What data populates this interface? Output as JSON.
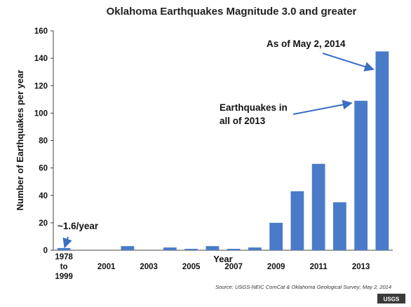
{
  "chart_data": {
    "type": "bar",
    "title": "Oklahoma Earthquakes Magnitude 3.0 and greater",
    "xlabel": "Year",
    "ylabel": "Number of Earthquakes per year",
    "ylim": [
      0,
      160
    ],
    "yticks": [
      "0",
      "20",
      "40",
      "60",
      "80",
      "100",
      "120",
      "140",
      "160"
    ],
    "categories": [
      "1978 to 1999",
      "2000",
      "2001",
      "2002",
      "2003",
      "2004",
      "2005",
      "2006",
      "2007",
      "2008",
      "2009",
      "2010",
      "2011",
      "2012",
      "2013",
      "2014"
    ],
    "values": [
      1.6,
      0,
      0,
      3,
      0,
      2,
      1,
      3,
      1,
      2,
      20,
      43,
      63,
      35,
      109,
      145
    ],
    "xtick_labels": [
      {
        "category": "1978 to 1999",
        "lines": [
          "1978",
          "to",
          "1999"
        ]
      },
      {
        "category": "2001",
        "lines": [
          "2001"
        ]
      },
      {
        "category": "2003",
        "lines": [
          "2003"
        ]
      },
      {
        "category": "2005",
        "lines": [
          "2005"
        ]
      },
      {
        "category": "2007",
        "lines": [
          "2007"
        ]
      },
      {
        "category": "2009",
        "lines": [
          "2009"
        ]
      },
      {
        "category": "2011",
        "lines": [
          "2011"
        ]
      },
      {
        "category": "2013",
        "lines": [
          "2013"
        ]
      }
    ],
    "annotations": [
      {
        "id": "pre-rate",
        "lines": [
          "~1.6/year"
        ],
        "target": "1978 to 1999"
      },
      {
        "id": "total-2013",
        "lines": [
          "Earthquakes in",
          "all of 2013"
        ],
        "target": "2013"
      },
      {
        "id": "as-of-2014",
        "lines": [
          "As of May 2, 2014"
        ],
        "target": "2014"
      }
    ],
    "grid": false,
    "legend": "none",
    "bar_color": "#4a7bc8"
  },
  "source": "Source: USGS-NEIC ComCat & Oklahoma Geological Survey; May 2, 2014",
  "watermark": "USGS"
}
